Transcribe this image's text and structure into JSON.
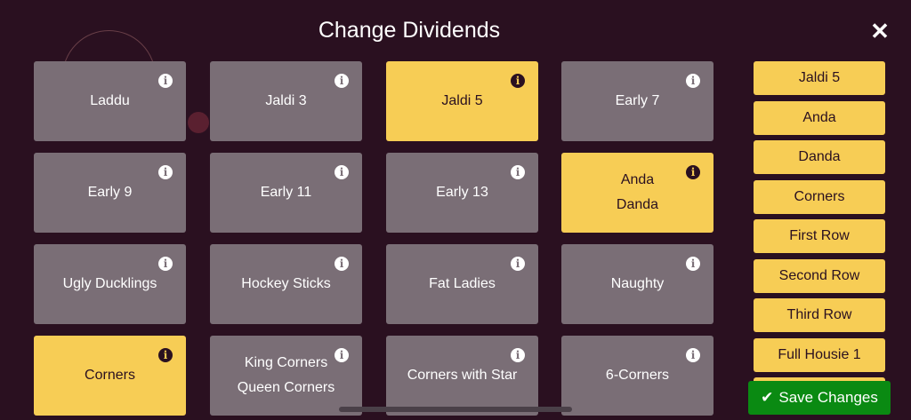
{
  "header": {
    "title": "Change Dividends",
    "close_icon": "close-icon"
  },
  "colors": {
    "background": "#2a1020",
    "tile": "#7a6e76",
    "selected": "#f7cd55",
    "save": "#0a8a12"
  },
  "tiles": [
    {
      "lines": [
        "Laddu"
      ],
      "selected": false
    },
    {
      "lines": [
        "Jaldi 3"
      ],
      "selected": false
    },
    {
      "lines": [
        "Jaldi 5"
      ],
      "selected": true
    },
    {
      "lines": [
        "Early 7"
      ],
      "selected": false
    },
    {
      "lines": [
        "Early 9"
      ],
      "selected": false
    },
    {
      "lines": [
        "Early 11"
      ],
      "selected": false
    },
    {
      "lines": [
        "Early 13"
      ],
      "selected": false
    },
    {
      "lines": [
        "Anda",
        "Danda"
      ],
      "selected": true
    },
    {
      "lines": [
        "Ugly Ducklings"
      ],
      "selected": false
    },
    {
      "lines": [
        "Hockey Sticks"
      ],
      "selected": false
    },
    {
      "lines": [
        "Fat Ladies"
      ],
      "selected": false
    },
    {
      "lines": [
        "Naughty"
      ],
      "selected": false
    },
    {
      "lines": [
        "Corners"
      ],
      "selected": true
    },
    {
      "lines": [
        "King Corners",
        "Queen Corners"
      ],
      "selected": false
    },
    {
      "lines": [
        "Corners with Star"
      ],
      "selected": false
    },
    {
      "lines": [
        "6-Corners"
      ],
      "selected": false
    }
  ],
  "selected_list": [
    "Jaldi 5",
    "Anda",
    "Danda",
    "Corners",
    "First Row",
    "Second Row",
    "Third Row",
    "Full Housie 1"
  ],
  "save": {
    "label": "Save Changes",
    "icon": "check-icon"
  }
}
